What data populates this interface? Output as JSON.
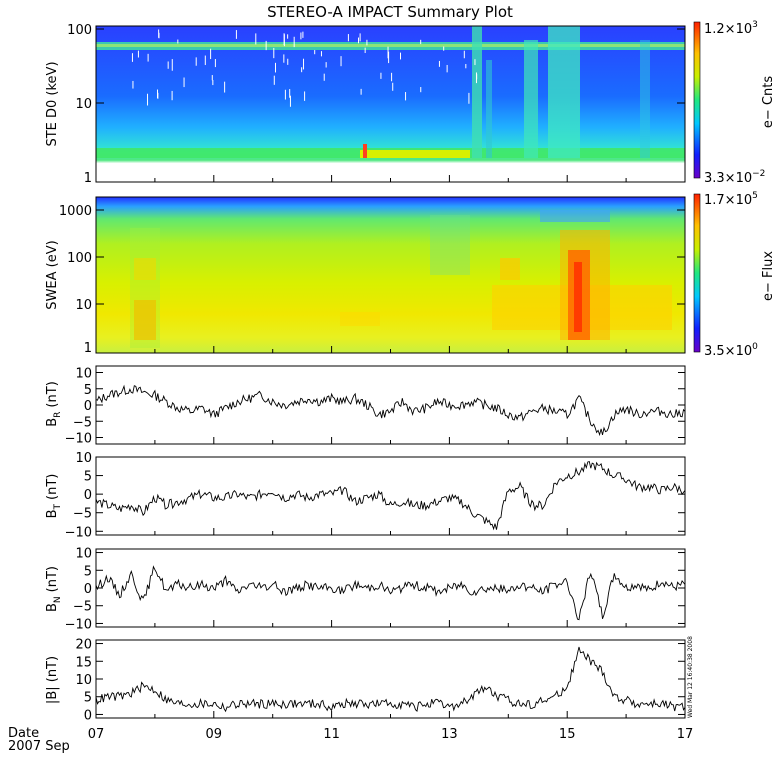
{
  "title": "STEREO-A IMPACT Summary Plot",
  "date_label": "Date",
  "date_value": "2007 Sep",
  "timestamp": "Wed Mar 12 16:40:38 2008",
  "x_ticks": [
    "07",
    "09",
    "11",
    "13",
    "15",
    "17"
  ],
  "chart_data": [
    {
      "type": "heatmap",
      "ylabel": "STE D0 (keV)",
      "y_scale": "log",
      "ylim": [
        1,
        100
      ],
      "y_ticks": [
        "100",
        "10",
        "1"
      ],
      "colorbar": {
        "label": "e− Cnts",
        "max": "1.2×10",
        "max_exp": "3",
        "min": "3.3×10",
        "min_exp": "−2"
      },
      "xlim": [
        7,
        17
      ]
    },
    {
      "type": "heatmap",
      "ylabel": "SWEA (eV)",
      "y_scale": "log",
      "ylim": [
        1,
        2000
      ],
      "y_ticks": [
        "1000",
        "100",
        "10",
        "1"
      ],
      "colorbar": {
        "label": "e− Flux",
        "max": "1.7×10",
        "max_exp": "5",
        "min": "3.5×10",
        "min_exp": "0"
      },
      "xlim": [
        7,
        17
      ]
    },
    {
      "type": "line",
      "ylabel": "B",
      "ylabel_sub": "R",
      "ylabel_unit": "(nT)",
      "ylim": [
        -12,
        12
      ],
      "y_ticks": [
        "10",
        "5",
        "0",
        "−5",
        "−10"
      ],
      "y_tick_values": [
        10,
        5,
        0,
        -5,
        -10
      ],
      "xlim": [
        7,
        17
      ],
      "x": [
        7.0,
        7.2,
        7.4,
        7.6,
        7.8,
        8.0,
        8.2,
        8.4,
        8.6,
        8.8,
        9.0,
        9.2,
        9.4,
        9.6,
        9.8,
        10.0,
        10.2,
        10.4,
        10.6,
        10.8,
        11.0,
        11.2,
        11.4,
        11.6,
        11.8,
        12.0,
        12.2,
        12.4,
        12.6,
        12.8,
        13.0,
        13.2,
        13.4,
        13.6,
        13.8,
        14.0,
        14.2,
        14.4,
        14.6,
        14.8,
        15.0,
        15.2,
        15.4,
        15.6,
        15.8,
        16.0,
        16.2,
        16.4,
        16.6,
        16.8,
        17.0
      ],
      "values": [
        1,
        3,
        4,
        5,
        4,
        3,
        1,
        -1,
        -2,
        -1,
        -3,
        -1,
        1,
        2,
        3,
        1,
        0,
        1,
        2,
        1,
        2,
        1,
        2,
        0,
        -3,
        -2,
        1,
        -2,
        -1,
        1,
        0,
        0,
        1,
        0,
        -1,
        -3,
        -4,
        -2,
        -1,
        -2,
        -3,
        2,
        -5,
        -9,
        -3,
        -1,
        -3,
        -2,
        -2,
        -3,
        -2
      ]
    },
    {
      "type": "line",
      "ylabel": "B",
      "ylabel_sub": "T",
      "ylabel_unit": "(nT)",
      "ylim": [
        -11,
        10
      ],
      "y_ticks": [
        "10",
        "5",
        "0",
        "−5",
        "−10"
      ],
      "y_tick_values": [
        10,
        5,
        0,
        -5,
        -10
      ],
      "xlim": [
        7,
        17
      ],
      "x": [
        7.0,
        7.2,
        7.4,
        7.6,
        7.8,
        8.0,
        8.2,
        8.4,
        8.6,
        8.8,
        9.0,
        9.2,
        9.4,
        9.6,
        9.8,
        10.0,
        10.2,
        10.4,
        10.6,
        10.8,
        11.0,
        11.2,
        11.4,
        11.6,
        11.8,
        12.0,
        12.2,
        12.4,
        12.6,
        12.8,
        13.0,
        13.2,
        13.4,
        13.6,
        13.8,
        14.0,
        14.2,
        14.4,
        14.6,
        14.8,
        15.0,
        15.2,
        15.4,
        15.6,
        15.8,
        16.0,
        16.2,
        16.4,
        16.6,
        16.8,
        17.0
      ],
      "values": [
        -2,
        -3,
        -4,
        -3,
        -5,
        -1,
        -3,
        -2,
        -1,
        0,
        -1,
        -1,
        0,
        -1,
        0,
        1,
        -1,
        0,
        -1,
        0,
        0,
        1,
        -2,
        -1,
        0,
        -3,
        -2,
        -3,
        -3,
        -2,
        -1,
        -2,
        -5,
        -7,
        -9,
        1,
        2,
        -3,
        -3,
        3,
        5,
        6,
        8,
        7,
        5,
        4,
        2,
        2,
        1,
        2,
        1
      ]
    },
    {
      "type": "line",
      "ylabel": "B",
      "ylabel_sub": "N",
      "ylabel_unit": "(nT)",
      "ylim": [
        -11,
        11
      ],
      "y_ticks": [
        "10",
        "5",
        "0",
        "−5",
        "−10"
      ],
      "y_tick_values": [
        10,
        5,
        0,
        -5,
        -10
      ],
      "xlim": [
        7,
        17
      ],
      "x": [
        7.0,
        7.2,
        7.4,
        7.6,
        7.8,
        8.0,
        8.2,
        8.4,
        8.6,
        8.8,
        9.0,
        9.2,
        9.4,
        9.6,
        9.8,
        10.0,
        10.2,
        10.4,
        10.6,
        10.8,
        11.0,
        11.2,
        11.4,
        11.6,
        11.8,
        12.0,
        12.2,
        12.4,
        12.6,
        12.8,
        13.0,
        13.2,
        13.4,
        13.6,
        13.8,
        14.0,
        14.2,
        14.4,
        14.6,
        14.8,
        15.0,
        15.2,
        15.4,
        15.6,
        15.8,
        16.0,
        16.2,
        16.4,
        16.6,
        16.8,
        17.0
      ],
      "values": [
        0,
        3,
        -2,
        4,
        -4,
        6,
        -1,
        1,
        0,
        1,
        0,
        2,
        -1,
        1,
        0,
        1,
        -1,
        0,
        1,
        0,
        0,
        -1,
        1,
        0,
        1,
        -1,
        0,
        1,
        0,
        -1,
        0,
        1,
        -1,
        0,
        0,
        -1,
        1,
        0,
        -1,
        1,
        2,
        -9,
        5,
        -8,
        4,
        0,
        1,
        -1,
        2,
        0,
        1
      ]
    },
    {
      "type": "line",
      "ylabel": "|B| (nT)",
      "ylim": [
        -1,
        21
      ],
      "y_ticks": [
        "20",
        "15",
        "10",
        "5",
        "0"
      ],
      "y_tick_values": [
        20,
        15,
        10,
        5,
        0
      ],
      "xlim": [
        7,
        17
      ],
      "x": [
        7.0,
        7.2,
        7.4,
        7.6,
        7.8,
        8.0,
        8.2,
        8.4,
        8.6,
        8.8,
        9.0,
        9.2,
        9.4,
        9.6,
        9.8,
        10.0,
        10.2,
        10.4,
        10.6,
        10.8,
        11.0,
        11.2,
        11.4,
        11.6,
        11.8,
        12.0,
        12.2,
        12.4,
        12.6,
        12.8,
        13.0,
        13.2,
        13.4,
        13.6,
        13.8,
        14.0,
        14.2,
        14.4,
        14.6,
        14.8,
        15.0,
        15.2,
        15.4,
        15.6,
        15.8,
        16.0,
        16.2,
        16.4,
        16.6,
        16.8,
        17.0
      ],
      "values": [
        4,
        5,
        5,
        6,
        8,
        7,
        4,
        3,
        3,
        3,
        3,
        2,
        3,
        3,
        3,
        3,
        3,
        3,
        3,
        3,
        2,
        3,
        3,
        3,
        3,
        3,
        3,
        2,
        3,
        3,
        2,
        3,
        5,
        8,
        5,
        4,
        3,
        3,
        4,
        5,
        8,
        18,
        15,
        12,
        5,
        4,
        3,
        3,
        3,
        2,
        2
      ]
    }
  ]
}
